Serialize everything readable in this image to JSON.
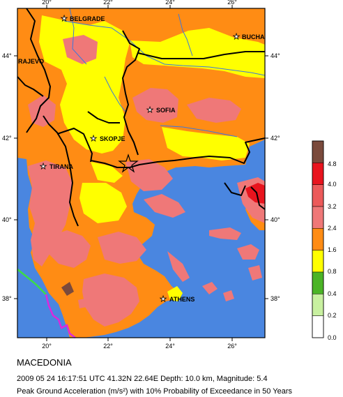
{
  "map": {
    "title": "MACEDONIA",
    "event_line": "2009 05 24 16:17:51 UTC 41.32N 22.64E Depth: 10.0 km, Magnitude: 5.4",
    "hazard_line": "Peak Ground Acceleration (m/s²) with 10% Probability of Exceedance in 50 Years",
    "longitude_ticks": [
      "20°",
      "22°",
      "24°",
      "26°"
    ],
    "latitude_ticks": [
      "44°",
      "42°",
      "40°",
      "38°"
    ],
    "cities": [
      {
        "name": "BELGRADE"
      },
      {
        "name": "BUCHA"
      },
      {
        "name": "RAJEVO"
      },
      {
        "name": "SOFIA"
      },
      {
        "name": "SKOPJE"
      },
      {
        "name": "TIRANA"
      },
      {
        "name": "ATHENS"
      }
    ],
    "epicenter": {
      "lat": 41.32,
      "lon": 22.64,
      "symbol": "star"
    },
    "legend": {
      "tick_labels": [
        "4.8",
        "4.0",
        "3.2",
        "2.4",
        "1.6",
        "0.8",
        "0.4",
        "0.2",
        "0.0"
      ],
      "classes": [
        {
          "range": "> 4.8",
          "color": "#7a4a3c"
        },
        {
          "range": "4.0–4.8",
          "color": "#e8141e"
        },
        {
          "range": "3.2–4.0",
          "color": "#ec5a5a"
        },
        {
          "range": "2.4–3.2",
          "color": "#ef7878"
        },
        {
          "range": "1.6–2.4",
          "color": "#ff8c14"
        },
        {
          "range": "0.8–1.6",
          "color": "#ffff00"
        },
        {
          "range": "0.4–0.8",
          "color": "#4bb426"
        },
        {
          "range": "0.2–0.4",
          "color": "#c8f0a0"
        },
        {
          "range": "0.0–0.2",
          "color": "#ffffff"
        }
      ]
    },
    "colors": {
      "sea": "#4a86e0",
      "border": "#000000",
      "river": "#3c78dc",
      "fault_green": "#3cdc46",
      "fault_magenta": "#dc28dc"
    }
  }
}
